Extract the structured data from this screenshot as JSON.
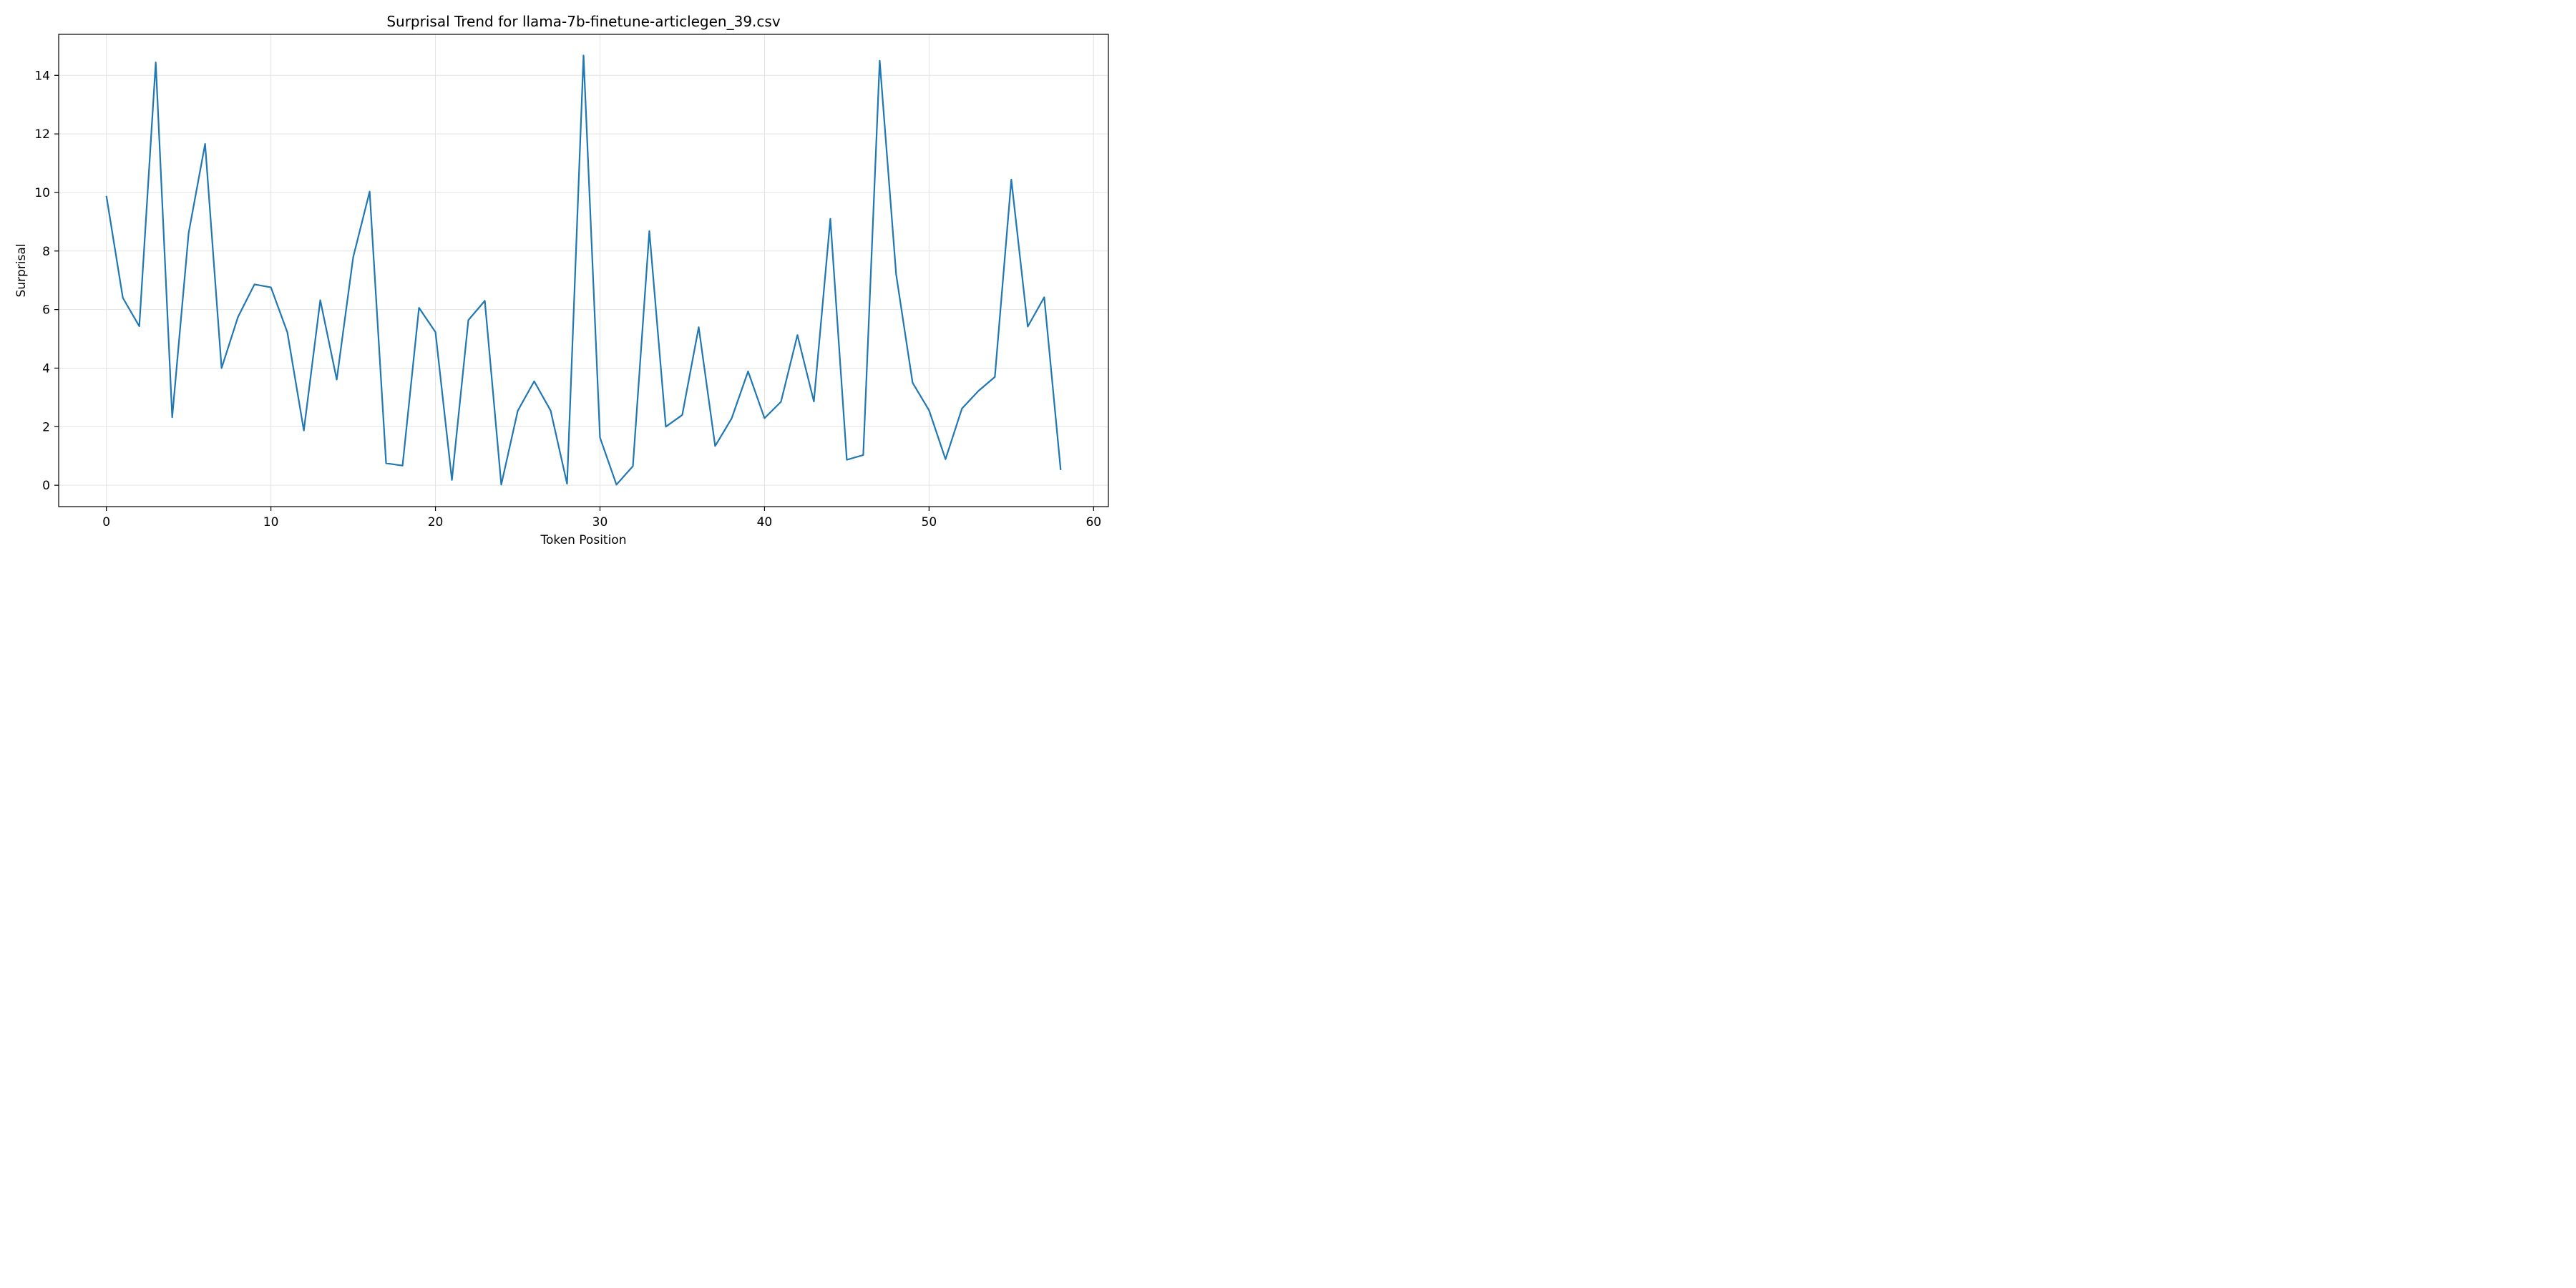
{
  "chart_data": {
    "type": "line",
    "title": "Surprisal Trend for llama-7b-finetune-articlegen_39.csv",
    "xlabel": "Token Position",
    "ylabel": "Surprisal",
    "xlim": [
      -2.9,
      60.9
    ],
    "ylim": [
      -0.73,
      15.4
    ],
    "xticks": [
      0,
      10,
      20,
      30,
      40,
      50,
      60
    ],
    "yticks": [
      0,
      2,
      4,
      6,
      8,
      10,
      12,
      14
    ],
    "grid": true,
    "line_color": "#1f77b4",
    "series": [
      {
        "x": [
          0,
          1,
          2,
          3,
          4,
          5,
          6,
          7,
          8,
          9,
          10,
          11,
          12,
          13,
          14,
          15,
          16,
          17,
          18,
          19,
          20,
          21,
          22,
          23,
          24,
          25,
          26,
          27,
          28,
          29,
          30,
          31,
          32,
          33,
          34,
          35,
          36,
          37,
          38,
          39,
          40,
          41,
          42,
          43,
          44,
          45,
          46,
          47,
          48,
          49,
          50,
          51,
          52,
          53,
          54,
          55,
          56,
          57,
          58
        ],
        "y": [
          9.88,
          6.4,
          5.43,
          14.44,
          2.32,
          8.62,
          11.66,
          4.0,
          5.75,
          6.86,
          6.76,
          5.22,
          1.87,
          6.32,
          3.61,
          7.79,
          10.03,
          0.75,
          0.67,
          6.06,
          5.23,
          0.18,
          5.64,
          6.3,
          0.02,
          2.54,
          3.55,
          2.55,
          0.05,
          14.68,
          1.63,
          0.02,
          0.65,
          8.68,
          2.0,
          2.4,
          5.4,
          1.34,
          2.28,
          3.89,
          2.29,
          2.85,
          5.13,
          2.86,
          9.1,
          0.87,
          1.03,
          14.5,
          7.2,
          3.5,
          2.56,
          0.89,
          2.62,
          3.22,
          3.7,
          10.44,
          5.42,
          6.42,
          0.52
        ]
      }
    ]
  }
}
